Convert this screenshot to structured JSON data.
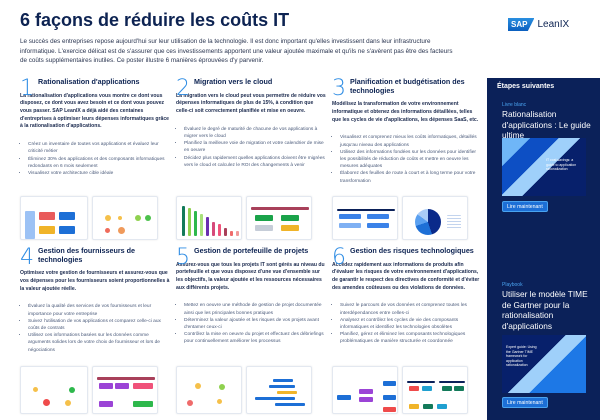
{
  "header": {
    "title": "6 façons de réduire les coûts IT",
    "intro": "Le succès des entreprises repose aujourd'hui sur leur utilisation de la technologie. Il est donc important qu'elles investissent dans leur infrastructure informatique. L'exercice délicat est de s'assurer que ces investissements apportent une valeur ajoutée maximale et qu'ils ne s'avèrent pas être des facteurs de coûts supplémentaires inutiles. Ce poster illustre 6 manières éprouvées d'y parvenir.",
    "logo_sap": "SAP",
    "logo_name": "LeanIX"
  },
  "sections": [
    {
      "num": "1",
      "title": "Rationalisation d'applications",
      "lead": "La rationalisation d'applications vous montre ce dont vous disposez, ce dont vous avez besoin et ce dont vous pouvez vous passer. SAP LeanIX a déjà aidé des centaines d'entreprises à optimiser leurs dépenses informatiques grâce à la rationalisation d'applications.",
      "bullets": [
        "Créez un inventaire de toutes vos applications et évaluez leur criticité métier",
        "Éliminez 30% des applications et des composants informatiques redondants en 6 mois seulement",
        "Visualisez votre architecture cible idéale"
      ]
    },
    {
      "num": "2",
      "title": "Migration vers le cloud",
      "lead": "La migration vers le cloud peut vous permettre de réduire vos dépenses informatiques de plus de 15%, à condition que celle-ci soit correctement planifiée et mise en oeuvre.",
      "bullets": [
        "Évaluez le degré de maturité de chacune de vos applications à migrer vers le cloud",
        "Planifiez la meilleure voie de migration et votre calendrier de mise en oeuvre",
        "Décidez plus rapidement quelles applications doivent être migrées vers le cloud et calculez le ROI des changements à venir"
      ]
    },
    {
      "num": "3",
      "title": "Planification et budgétisation des technologies",
      "lead": "Modélisez la transformation de votre environnement informatique et obtenez des informations détaillées, telles que les cycles de vie d'applications, les dépenses SaaS, etc.",
      "bullets": [
        "Visualisez et comprenez mieux les coûts informatiques, détaillés jusqu'au niveau des applications",
        "Utilisez des informations fondées sur les données pour identifier les possibilités de réduction de coûts et mettre en oeuvre les mesures adéquates",
        "Élaborez des feuilles de route à court et à long terme pour votre transformation"
      ]
    },
    {
      "num": "4",
      "title": "Gestion des fournisseurs de technologies",
      "lead": "Optimisez votre gestion de fournisseurs et assurez-vous que vos dépenses pour les fournisseurs soient proportionnelles à la valeur ajoutée réelle.",
      "bullets": [
        "Évaluez la qualité des services de vos fournisseurs et leur importance pour votre entreprise",
        "Suivez l'utilisation de vos applications et comparez celle-ci aux coûts de contrats",
        "Utilisez ces informations basées sur les données comme arguments solides lors de votre choix de fournisseur et lors de négociations"
      ]
    },
    {
      "num": "5",
      "title": "Gestion de portefeuille de projets",
      "lead": "Assurez-vous que tous les projets IT sont gérés au niveau du portefeuille et que vous disposez d'une vue d'ensemble sur les objectifs, la valeur ajoutée et les ressources nécessaires aux différents projets.",
      "bullets": [
        "Mettez en oeuvre une méthode de gestion de projet documentée ainsi que les principales bonnes pratiques",
        "Déterminez la valeur ajoutée et les risques de vos projets avant d'entamer ceux-ci",
        "Contrôlez la mise en oeuvre du projet et effectuez des débriefings pour continuellement améliorer les processus"
      ]
    },
    {
      "num": "6",
      "title": "Gestion des risques technologiques",
      "lead": "Accédez rapidement aux informations de produits afin d'évaluer les risques de votre environnement d'applications, de garantir le respect des directives de conformité et d'éviter des amendes coûteuses ou des violations de données.",
      "bullets": [
        "Suivez le parcours de vos données et comprenez toutes les interdépendances entre celles-ci",
        "Analysez et contrôlez les cycles de vie des composants informatiques et identifiez les technologies obsolètes",
        "Planifiez, gérez et éliminez les composants technologiques problématiques de manière structurée et coordonnée"
      ]
    }
  ],
  "sidebar": {
    "title": "Étapes suivantes",
    "resources": [
      {
        "kind": "Livre blanc",
        "title": "Rationalisation d'applications : Le guide ultime",
        "cover_text": "IT cost savings: a guide to application rationalization",
        "button": "Lire maintenant"
      },
      {
        "kind": "Playbook",
        "title": "Utiliser le modèle TIME de Gartner pour la rationalisation d'applications",
        "cover_text": "Expert guide: Using the Gartner TIME framework for application rationalization",
        "button": "Lire maintenant"
      }
    ]
  },
  "colors": {
    "navy": "#0b2159",
    "accent": "#2f8de4"
  }
}
